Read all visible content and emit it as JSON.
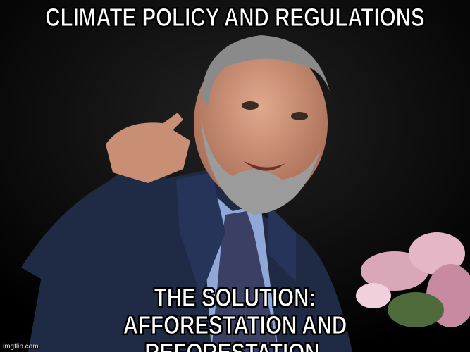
{
  "meme": {
    "top_text": "CLIMATE POLICY AND REGULATIONS",
    "bottom_text_line1": "THE SOLUTION:",
    "bottom_text_line2": "AFFORESTATION AND REFORESTATION.",
    "watermark": "imgflip.com"
  },
  "photo": {
    "subject": "bearded man in navy suit pointing at viewer",
    "colors": {
      "background": "#000000",
      "suit": "#1f2a44",
      "shirt": "#8fa8d8",
      "tie": "#3a3f63",
      "skin": "#c98f74",
      "hair": "#8a8a8a",
      "flowers": "#d9a7b8"
    }
  }
}
